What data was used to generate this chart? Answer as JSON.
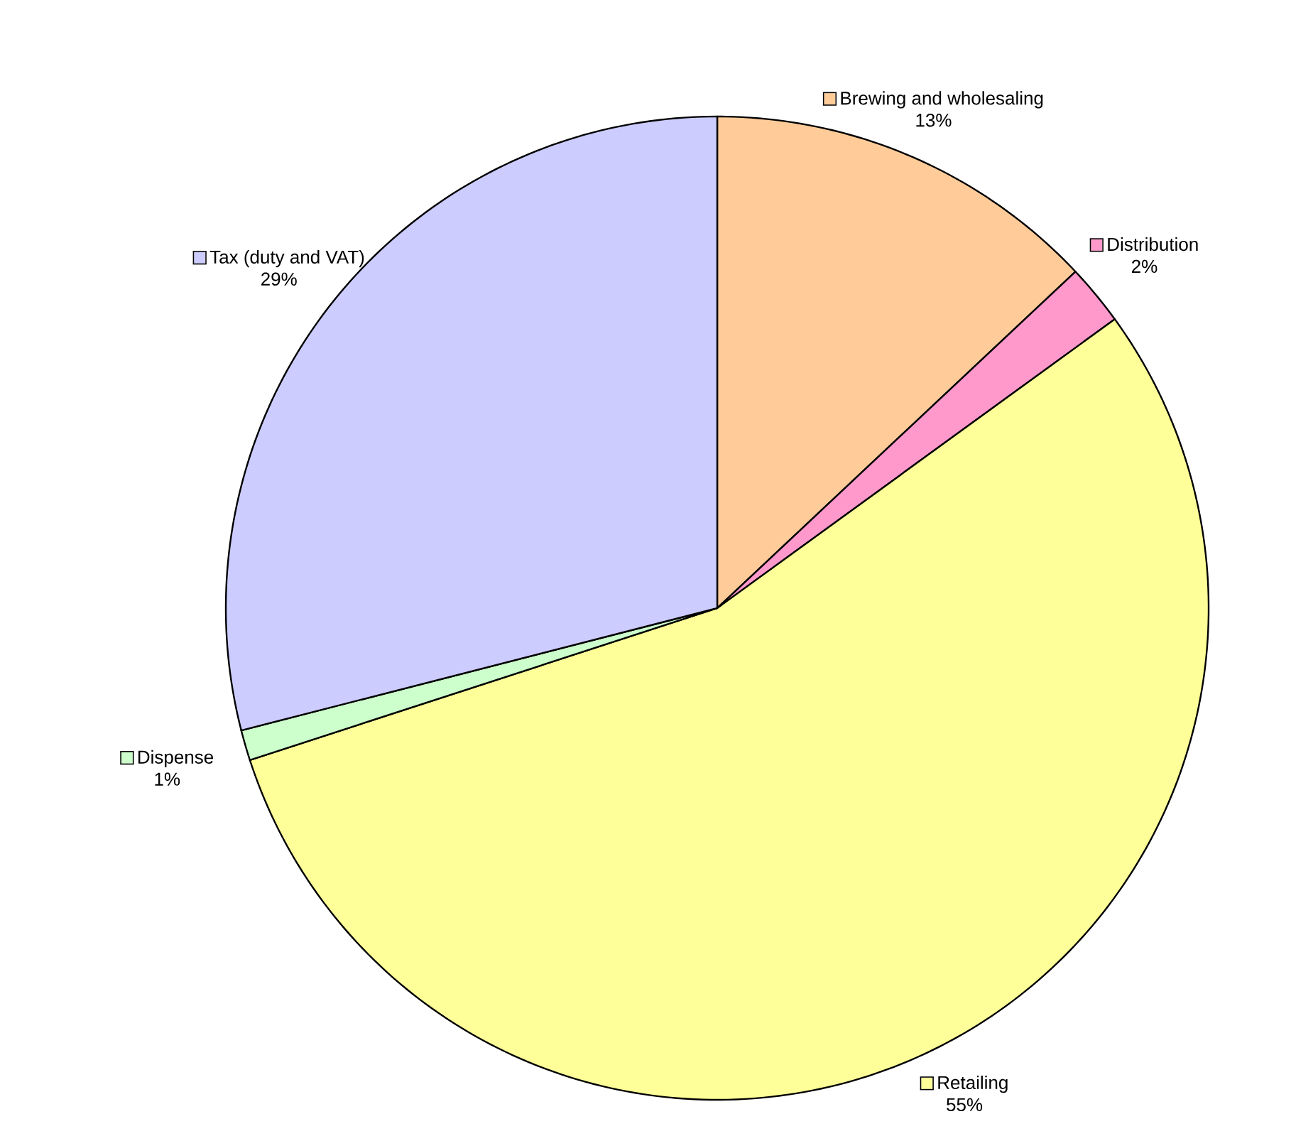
{
  "chart_data": {
    "type": "pie",
    "categories": [
      "Brewing and wholesaling",
      "Distribution",
      "Retailing",
      "Dispense",
      "Tax (duty and VAT)"
    ],
    "values": [
      13,
      2,
      55,
      1,
      29
    ],
    "colors": [
      "#ffcc99",
      "#ff99cc",
      "#ffff99",
      "#ccffcc",
      "#ccccff"
    ],
    "value_labels": [
      "13%",
      "2%",
      "55%",
      "1%",
      "29%"
    ],
    "legend": "top left"
  }
}
